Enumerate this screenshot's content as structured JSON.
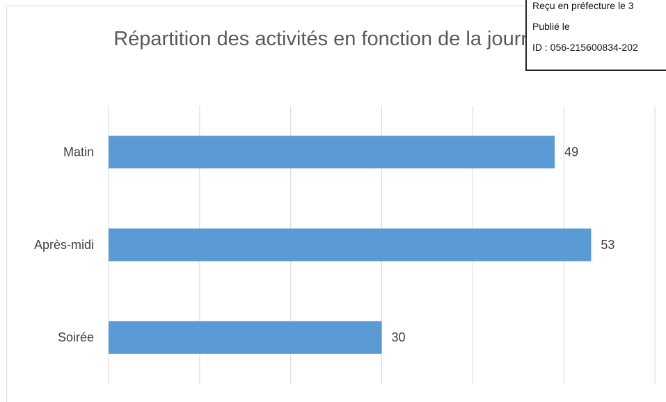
{
  "chart_data": {
    "type": "bar",
    "orientation": "horizontal",
    "title": "Répartition des activités en fonction de la journée",
    "categories": [
      "Matin",
      "Après-midi",
      "Soirée"
    ],
    "values": [
      49,
      53,
      30
    ],
    "color": "#5b9bd5",
    "xlim": [
      0,
      60
    ],
    "xticks": [
      0,
      10,
      20,
      30,
      40,
      50,
      60
    ],
    "grid": true
  },
  "stamp": {
    "lines": [
      "Reçu en préfecture le 3",
      "Publié le",
      "ID : 056-215600834-202"
    ]
  }
}
